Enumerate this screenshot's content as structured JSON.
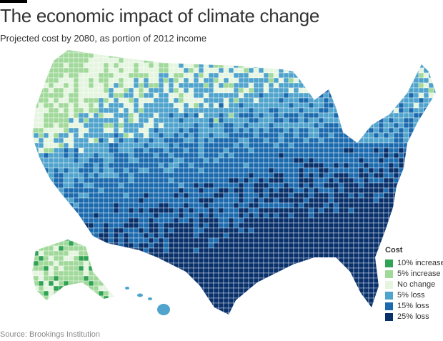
{
  "title": "The economic impact of climate change",
  "subtitle": "Projected cost by 2080, as portion of 2012 income",
  "legend": {
    "title": "Cost",
    "items": [
      {
        "label": "10% increase",
        "color": "#31a354"
      },
      {
        "label": "5% increase",
        "color": "#a1d99b"
      },
      {
        "label": "No change",
        "color": "#e5f5e0"
      },
      {
        "label": "5% loss",
        "color": "#4fa3cc"
      },
      {
        "label": "15% loss",
        "color": "#1c6aae"
      },
      {
        "label": "25% loss",
        "color": "#08306b"
      }
    ]
  },
  "source": "Source: Brookings Institution"
}
